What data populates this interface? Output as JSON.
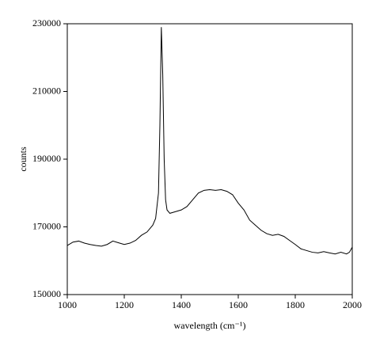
{
  "chart_data": {
    "type": "line",
    "x_label": "wavelength (cm⁻¹)",
    "y_label": "counts",
    "x": [
      1000,
      1020,
      1040,
      1060,
      1080,
      1100,
      1120,
      1140,
      1160,
      1180,
      1200,
      1220,
      1240,
      1260,
      1280,
      1300,
      1310,
      1320,
      1325,
      1330,
      1335,
      1340,
      1345,
      1350,
      1360,
      1380,
      1400,
      1420,
      1440,
      1460,
      1480,
      1500,
      1520,
      1540,
      1560,
      1580,
      1600,
      1620,
      1640,
      1660,
      1680,
      1700,
      1720,
      1740,
      1760,
      1780,
      1800,
      1820,
      1840,
      1860,
      1880,
      1900,
      1920,
      1940,
      1960,
      1980,
      1990,
      2000
    ],
    "values": [
      164500,
      165500,
      165800,
      165200,
      164800,
      164500,
      164300,
      164800,
      165800,
      165300,
      164800,
      165200,
      166000,
      167500,
      168500,
      170500,
      172500,
      180000,
      200000,
      229000,
      215000,
      190000,
      178000,
      175000,
      174000,
      174500,
      175000,
      176000,
      178000,
      180000,
      180800,
      181000,
      180800,
      181000,
      180500,
      179500,
      177000,
      175000,
      172000,
      170500,
      169000,
      168000,
      167500,
      167800,
      167200,
      166000,
      164800,
      163500,
      163000,
      162500,
      162300,
      162700,
      162300,
      162000,
      162500,
      162000,
      162500,
      164000
    ],
    "color": "#000000",
    "xlim": [
      1000,
      2000
    ],
    "xticks": [
      1000,
      1200,
      1400,
      1600,
      1800,
      2000
    ],
    "ylim": [
      150000,
      230000
    ],
    "yticks": [
      150000,
      170000,
      190000,
      210000,
      230000
    ],
    "grid": false
  }
}
